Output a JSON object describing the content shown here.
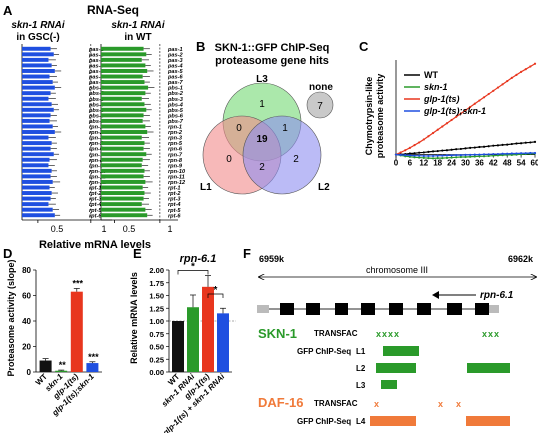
{
  "panelA": {
    "letter": "A",
    "title": "RNA-Seq",
    "left_title": [
      "skn-1 RNAi",
      "in GSC(-)"
    ],
    "right_title": [
      "skn-1 RNAi",
      "in WT"
    ],
    "xlabel": "Relative mRNA levels",
    "genes": [
      "pas-1",
      "pas-2",
      "pas-3",
      "pas-4",
      "pas-5",
      "pas-6",
      "pas-7",
      "pbs-1",
      "pbs-2",
      "pbs-3",
      "pbs-4",
      "pbs-5",
      "pbs-6",
      "pbs-7",
      "rpn-1",
      "rpn-2",
      "rpn-3",
      "rpn-5",
      "rpn-6",
      "rpn-7",
      "rpn-8",
      "rpn-9",
      "rpn-10",
      "rpn-11",
      "rpn-12",
      "rpt-1",
      "rpt-2",
      "rpt-3",
      "rpt-4",
      "rpt-5",
      "rpt-6"
    ],
    "ticks": [
      "0.5",
      "1"
    ],
    "colors": {
      "left": "#1f4fe0",
      "right": "#2a9a2a"
    }
  },
  "panelB": {
    "letter": "B",
    "title": [
      "SKN-1::GFP ChIP-Seq",
      "proteasome gene hits"
    ],
    "sets": [
      "L3",
      "L1",
      "L2"
    ],
    "regions": {
      "l3_only": "1",
      "l1_only": "0",
      "l2_only": "2",
      "l1_l3": "0",
      "l2_l3": "1",
      "l1_l2": "2",
      "all": "19"
    },
    "none_label": "none",
    "none_value": "7",
    "colors": {
      "l3": "#8fe08f",
      "l1": "#f28a8a",
      "l2": "#8d8df0",
      "none": "#c9c9c9"
    }
  },
  "panelC": {
    "letter": "C",
    "ylabel": [
      "Chymotrypsin-like",
      "proteasome activity"
    ],
    "legend": [
      "WT",
      "skn-1",
      "glp-1(ts)",
      "glp-1(ts);skn-1"
    ],
    "colors": [
      "#000000",
      "#2a9a2a",
      "#e8361e",
      "#1f4fe0"
    ]
  },
  "panelD": {
    "letter": "D",
    "ylabel": "Proteasome activity (slope)",
    "yticks": [
      "0",
      "20",
      "40",
      "60",
      "80"
    ],
    "categories": [
      "WT",
      "skn-1",
      "glp-1(ts)",
      "glp-1(ts);skn-1"
    ],
    "sig": [
      "",
      "**",
      "***",
      "***"
    ],
    "colors": [
      "#111111",
      "#2a9a2a",
      "#e8361e",
      "#1f4fe0"
    ]
  },
  "panelE": {
    "letter": "E",
    "title": "rpn-6.1",
    "ylabel": "Relative mRNA levels",
    "yticks": [
      "0.00",
      "0.25",
      "0.50",
      "0.75",
      "1.00",
      "1.25",
      "1.50",
      "1.75",
      "2.00"
    ],
    "categories": [
      "WT",
      "skn-1 RNAi",
      "glp-1(ts)",
      "glp-1(ts) + skn-1 RNAi"
    ],
    "sig": [
      "*",
      "*"
    ],
    "colors": [
      "#111111",
      "#2a9a2a",
      "#e8361e",
      "#1f4fe0"
    ]
  },
  "panelF": {
    "letter": "F",
    "coord_left": "6959k",
    "coord_right": "6962k",
    "chromosome": "chromosome III",
    "gene": "rpn-6.1",
    "skn1": "SKN-1",
    "daf16": "DAF-16",
    "transfac": "TRANSFAC",
    "gfp_chip": "GFP ChIP-Seq",
    "tracks": [
      "L1",
      "L2",
      "L3",
      "L4"
    ],
    "skn1_motifs": [
      "xxxx",
      "xxx"
    ],
    "daf16_motifs": [
      "x",
      "x",
      "x"
    ],
    "colors": {
      "skn1": "#2a9a2a",
      "daf16": "#f07a3a"
    }
  },
  "chart_data": [
    {
      "type": "bar",
      "title": "RNA-Seq: skn-1 RNAi in GSC(-)",
      "xlabel": "Relative mRNA levels",
      "categories": [
        "pas-1",
        "pas-2",
        "pas-3",
        "pas-4",
        "pas-5",
        "pas-6",
        "pas-7",
        "pbs-1",
        "pbs-2",
        "pbs-3",
        "pbs-4",
        "pbs-5",
        "pbs-6",
        "pbs-7",
        "rpn-1",
        "rpn-2",
        "rpn-3",
        "rpn-5",
        "rpn-6",
        "rpn-7",
        "rpn-8",
        "rpn-9",
        "rpn-10",
        "rpn-11",
        "rpn-12",
        "rpt-1",
        "rpt-2",
        "rpt-3",
        "rpt-4",
        "rpt-5",
        "rpt-6"
      ],
      "values": [
        0.62,
        0.65,
        0.6,
        0.63,
        0.66,
        0.61,
        0.64,
        0.66,
        0.62,
        0.6,
        0.63,
        0.65,
        0.62,
        0.61,
        0.64,
        0.66,
        0.6,
        0.63,
        0.62,
        0.65,
        0.61,
        0.6,
        0.63,
        0.62,
        0.64,
        0.61,
        0.63,
        0.62,
        0.6,
        0.64,
        0.66
      ],
      "errors": [
        0.06,
        0.05,
        0.07,
        0.05,
        0.06,
        0.07,
        0.05,
        0.06,
        0.05,
        0.07,
        0.06,
        0.05,
        0.06,
        0.07,
        0.05,
        0.06,
        0.07,
        0.05,
        0.06,
        0.05,
        0.07,
        0.06,
        0.05,
        0.06,
        0.07,
        0.05,
        0.06,
        0.05,
        0.07,
        0.06,
        0.05
      ],
      "xlim": [
        0.35,
        1.2
      ]
    },
    {
      "type": "bar",
      "title": "RNA-Seq: skn-1 RNAi in WT",
      "xlabel": "Relative mRNA levels",
      "categories": [
        "pas-1",
        "pas-2",
        "pas-3",
        "pas-4",
        "pas-5",
        "pas-6",
        "pas-7",
        "pbs-1",
        "pbs-2",
        "pbs-3",
        "pbs-4",
        "pbs-5",
        "pbs-6",
        "pbs-7",
        "rpn-1",
        "rpn-2",
        "rpn-3",
        "rpn-5",
        "rpn-6",
        "rpn-7",
        "rpn-8",
        "rpn-9",
        "rpn-10",
        "rpn-11",
        "rpn-12",
        "rpt-1",
        "rpt-2",
        "rpt-3",
        "rpt-4",
        "rpt-5",
        "rpt-6"
      ],
      "values": [
        0.82,
        0.85,
        0.8,
        0.84,
        0.86,
        0.81,
        0.83,
        0.87,
        0.84,
        0.8,
        0.83,
        0.85,
        0.82,
        0.81,
        0.84,
        0.86,
        0.8,
        0.83,
        0.82,
        0.85,
        0.81,
        0.8,
        0.83,
        0.82,
        0.84,
        0.81,
        0.83,
        0.82,
        0.8,
        0.84,
        0.86
      ],
      "errors": [
        0.07,
        0.06,
        0.08,
        0.06,
        0.07,
        0.08,
        0.06,
        0.07,
        0.06,
        0.08,
        0.07,
        0.06,
        0.07,
        0.08,
        0.06,
        0.07,
        0.08,
        0.06,
        0.07,
        0.06,
        0.08,
        0.07,
        0.06,
        0.07,
        0.08,
        0.06,
        0.07,
        0.06,
        0.08,
        0.07,
        0.06
      ],
      "xlim": [
        0.35,
        1.2
      ]
    },
    {
      "type": "line",
      "ylabel": "Chymotrypsin-like proteasome activity",
      "x": [
        0,
        2,
        4,
        6,
        8,
        10,
        12,
        14,
        16,
        18,
        20,
        22,
        24,
        26,
        28,
        30,
        32,
        34,
        36,
        38,
        40,
        42,
        44,
        46,
        48,
        50,
        52,
        54,
        56,
        58,
        60
      ],
      "xticks": [
        0,
        6,
        12,
        18,
        24,
        30,
        36,
        42,
        48,
        54,
        60
      ],
      "series": [
        {
          "name": "WT",
          "values": [
            0,
            1,
            2,
            4,
            5,
            7,
            8,
            10,
            12,
            13,
            15,
            16,
            18,
            20,
            21,
            23,
            25,
            26,
            28,
            29,
            31,
            33,
            34,
            36,
            37,
            39,
            41,
            42,
            44,
            45,
            47
          ]
        },
        {
          "name": "skn-1",
          "values": [
            0,
            -3,
            -6,
            -8,
            -10,
            -11,
            -12,
            -13,
            -14,
            -13,
            -13,
            -12,
            -11,
            -10,
            -9,
            -9,
            -8,
            -7,
            -6,
            -6,
            -5,
            -4,
            -3,
            -2,
            -1,
            -1,
            0,
            1,
            2,
            3,
            4
          ]
        },
        {
          "name": "glp-1(ts)",
          "values": [
            0,
            8,
            16,
            25,
            35,
            45,
            56,
            68,
            80,
            92,
            104,
            116,
            128,
            140,
            152,
            164,
            176,
            188,
            200,
            212,
            224,
            236,
            248,
            260,
            272,
            284,
            295,
            306,
            316,
            326,
            336
          ]
        },
        {
          "name": "glp-1(ts);skn-1",
          "values": [
            0,
            -1,
            -2,
            -3,
            -4,
            -4,
            -5,
            -5,
            -5,
            -4,
            -4,
            -3,
            -3,
            -2,
            -2,
            -1,
            -1,
            0,
            0,
            1,
            1,
            2,
            2,
            3,
            3,
            4,
            4,
            5,
            5,
            6,
            6
          ]
        }
      ]
    },
    {
      "type": "bar",
      "ylabel": "Proteasome activity (slope)",
      "categories": [
        "WT",
        "skn-1",
        "glp-1(ts)",
        "glp-1(ts);skn-1"
      ],
      "values": [
        9,
        1,
        63,
        7
      ],
      "errors": [
        1.5,
        0.5,
        2.5,
        1.0
      ],
      "ylim": [
        0,
        80
      ]
    },
    {
      "type": "bar",
      "title": "rpn-6.1",
      "ylabel": "Relative mRNA levels",
      "categories": [
        "WT",
        "skn-1 RNAi",
        "glp-1(ts)",
        "glp-1(ts) + skn-1 RNAi"
      ],
      "values": [
        1.0,
        1.27,
        1.67,
        1.15
      ],
      "errors": [
        0.0,
        0.24,
        0.22,
        0.1
      ],
      "ylim": [
        0,
        2.0
      ]
    }
  ]
}
